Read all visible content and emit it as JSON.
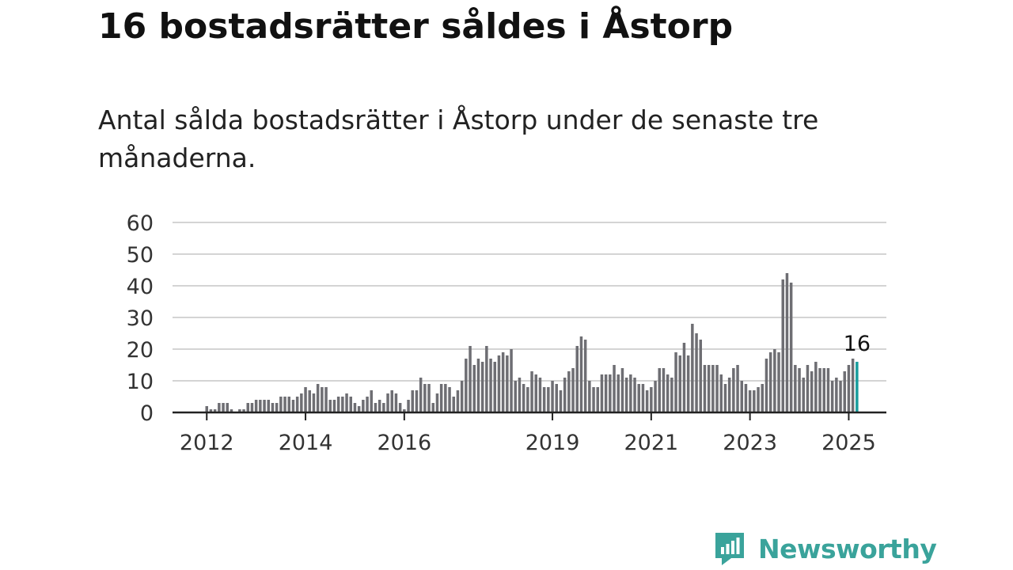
{
  "title": "16 bostadsrätter såldes i Åstorp",
  "subtitle": "Antal sålda bostadsrätter i Åstorp under de senaste tre månaderna.",
  "brand": {
    "name": "Newsworthy",
    "color": "#3aa39b",
    "icon": "newsworthy-logo-icon"
  },
  "chart_data": {
    "type": "bar",
    "ylim": [
      0,
      60
    ],
    "yticks": [
      0,
      10,
      20,
      30,
      40,
      50,
      60
    ],
    "xtick_labels": [
      "2012",
      "2014",
      "2016",
      "2019",
      "2021",
      "2023",
      "2025"
    ],
    "grid": true,
    "bar_color": "#6e6e73",
    "highlight_color": "#179d9d",
    "highlight_label": "16",
    "values": [
      2,
      1,
      1,
      3,
      3,
      3,
      1,
      0,
      1,
      1,
      3,
      3,
      4,
      4,
      4,
      4,
      3,
      3,
      5,
      5,
      5,
      4,
      5,
      6,
      8,
      7,
      6,
      9,
      8,
      8,
      4,
      4,
      5,
      5,
      6,
      5,
      3,
      2,
      4,
      5,
      7,
      3,
      4,
      3,
      6,
      7,
      6,
      3,
      1,
      4,
      7,
      7,
      11,
      9,
      9,
      3,
      6,
      9,
      9,
      8,
      5,
      7,
      10,
      17,
      21,
      15,
      17,
      16,
      21,
      17,
      16,
      18,
      19,
      18,
      20,
      10,
      11,
      9,
      8,
      13,
      12,
      11,
      8,
      8,
      10,
      9,
      7,
      11,
      13,
      14,
      21,
      24,
      23,
      10,
      8,
      8,
      12,
      12,
      12,
      15,
      12,
      14,
      11,
      12,
      11,
      9,
      9,
      7,
      8,
      10,
      14,
      14,
      12,
      11,
      19,
      18,
      22,
      18,
      28,
      25,
      23,
      15,
      15,
      15,
      15,
      12,
      9,
      11,
      14,
      15,
      10,
      9,
      7,
      7,
      8,
      9,
      17,
      19,
      20,
      19,
      42,
      44,
      41,
      15,
      14,
      11,
      15,
      13,
      16,
      14,
      14,
      14,
      10,
      11,
      10,
      13,
      15,
      17,
      16
    ]
  }
}
